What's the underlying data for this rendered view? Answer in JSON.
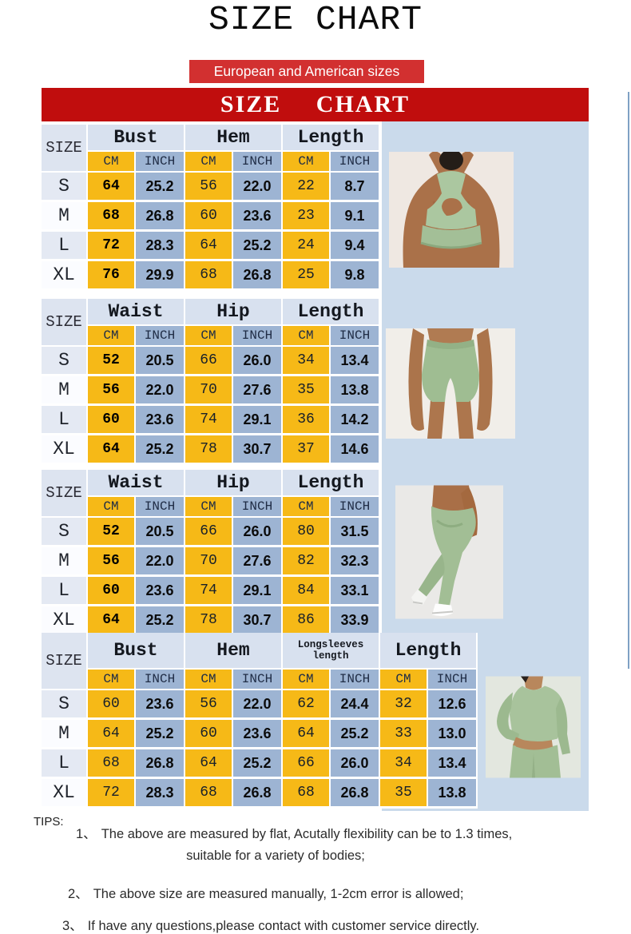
{
  "header": {
    "title": "SIZE CHART",
    "badge": "European and American sizes",
    "banner": "SIZE CHART"
  },
  "colors": {
    "banner_red": "#c00d0d",
    "badge_red": "#d23030",
    "cell_yellow": "#f6b917",
    "cell_blue": "#9db4d3",
    "group_header_blue": "#d8e1ef",
    "panel_blue": "#cadaeb",
    "garment_green": "#a2be95"
  },
  "tables": [
    {
      "name": "sports-bra-size-table",
      "size_header": "SIZE",
      "groups": [
        {
          "label": "Bust"
        },
        {
          "label": "Hem"
        },
        {
          "label": "Length"
        }
      ],
      "units": [
        "CM",
        "INCH"
      ],
      "rows": [
        {
          "size": "S",
          "values": [
            "64",
            "25.2",
            "56",
            "22.0",
            "22",
            "8.7"
          ]
        },
        {
          "size": "M",
          "values": [
            "68",
            "26.8",
            "60",
            "23.6",
            "23",
            "9.1"
          ]
        },
        {
          "size": "L",
          "values": [
            "72",
            "28.3",
            "64",
            "25.2",
            "24",
            "9.4"
          ]
        },
        {
          "size": "XL",
          "values": [
            "76",
            "29.9",
            "68",
            "26.8",
            "25",
            "9.8"
          ]
        }
      ]
    },
    {
      "name": "shorts-size-table",
      "size_header": "SIZE",
      "groups": [
        {
          "label": "Waist"
        },
        {
          "label": "Hip"
        },
        {
          "label": "Length"
        }
      ],
      "units": [
        "CM",
        "INCH"
      ],
      "rows": [
        {
          "size": "S",
          "values": [
            "52",
            "20.5",
            "66",
            "26.0",
            "34",
            "13.4"
          ]
        },
        {
          "size": "M",
          "values": [
            "56",
            "22.0",
            "70",
            "27.6",
            "35",
            "13.8"
          ]
        },
        {
          "size": "L",
          "values": [
            "60",
            "23.6",
            "74",
            "29.1",
            "36",
            "14.2"
          ]
        },
        {
          "size": "XL",
          "values": [
            "64",
            "25.2",
            "78",
            "30.7",
            "37",
            "14.6"
          ]
        }
      ]
    },
    {
      "name": "leggings-size-table",
      "size_header": "SIZE",
      "groups": [
        {
          "label": "Waist"
        },
        {
          "label": "Hip"
        },
        {
          "label": "Length"
        }
      ],
      "units": [
        "CM",
        "INCH"
      ],
      "rows": [
        {
          "size": "S",
          "values": [
            "52",
            "20.5",
            "66",
            "26.0",
            "80",
            "31.5"
          ]
        },
        {
          "size": "M",
          "values": [
            "56",
            "22.0",
            "70",
            "27.6",
            "82",
            "32.3"
          ]
        },
        {
          "size": "L",
          "values": [
            "60",
            "23.6",
            "74",
            "29.1",
            "84",
            "33.1"
          ]
        },
        {
          "size": "XL",
          "values": [
            "64",
            "25.2",
            "78",
            "30.7",
            "86",
            "33.9"
          ]
        }
      ]
    },
    {
      "name": "longsleeve-top-size-table",
      "size_header": "SIZE",
      "groups": [
        {
          "label": "Bust"
        },
        {
          "label": "Hem"
        },
        {
          "label": "Longsleeves length",
          "small": true
        },
        {
          "label": "Length"
        }
      ],
      "units": [
        "CM",
        "INCH"
      ],
      "rows": [
        {
          "size": "S",
          "values": [
            "60",
            "23.6",
            "56",
            "22.0",
            "62",
            "24.4",
            "32",
            "12.6"
          ]
        },
        {
          "size": "M",
          "values": [
            "64",
            "25.2",
            "60",
            "23.6",
            "64",
            "25.2",
            "33",
            "13.0"
          ]
        },
        {
          "size": "L",
          "values": [
            "68",
            "26.8",
            "64",
            "25.2",
            "66",
            "26.0",
            "34",
            "13.4"
          ]
        },
        {
          "size": "XL",
          "values": [
            "72",
            "28.3",
            "68",
            "26.8",
            "68",
            "26.8",
            "35",
            "13.8"
          ]
        }
      ]
    }
  ],
  "photos": [
    "sports-bra-back-photo",
    "shorts-photo",
    "leggings-photo",
    "longsleeve-top-photo"
  ],
  "tips": {
    "label": "TIPS:",
    "items": [
      {
        "num": "1、",
        "lines": [
          "The above are measured by flat, Acutally flexibility can be to 1.3 times,",
          "suitable for a variety of bodies;"
        ]
      },
      {
        "num": "2、",
        "lines": [
          "The above size are measured manually, 1-2cm error is allowed;"
        ]
      },
      {
        "num": "3、",
        "lines": [
          "If have any questions,please contact with customer service directly."
        ]
      }
    ]
  }
}
